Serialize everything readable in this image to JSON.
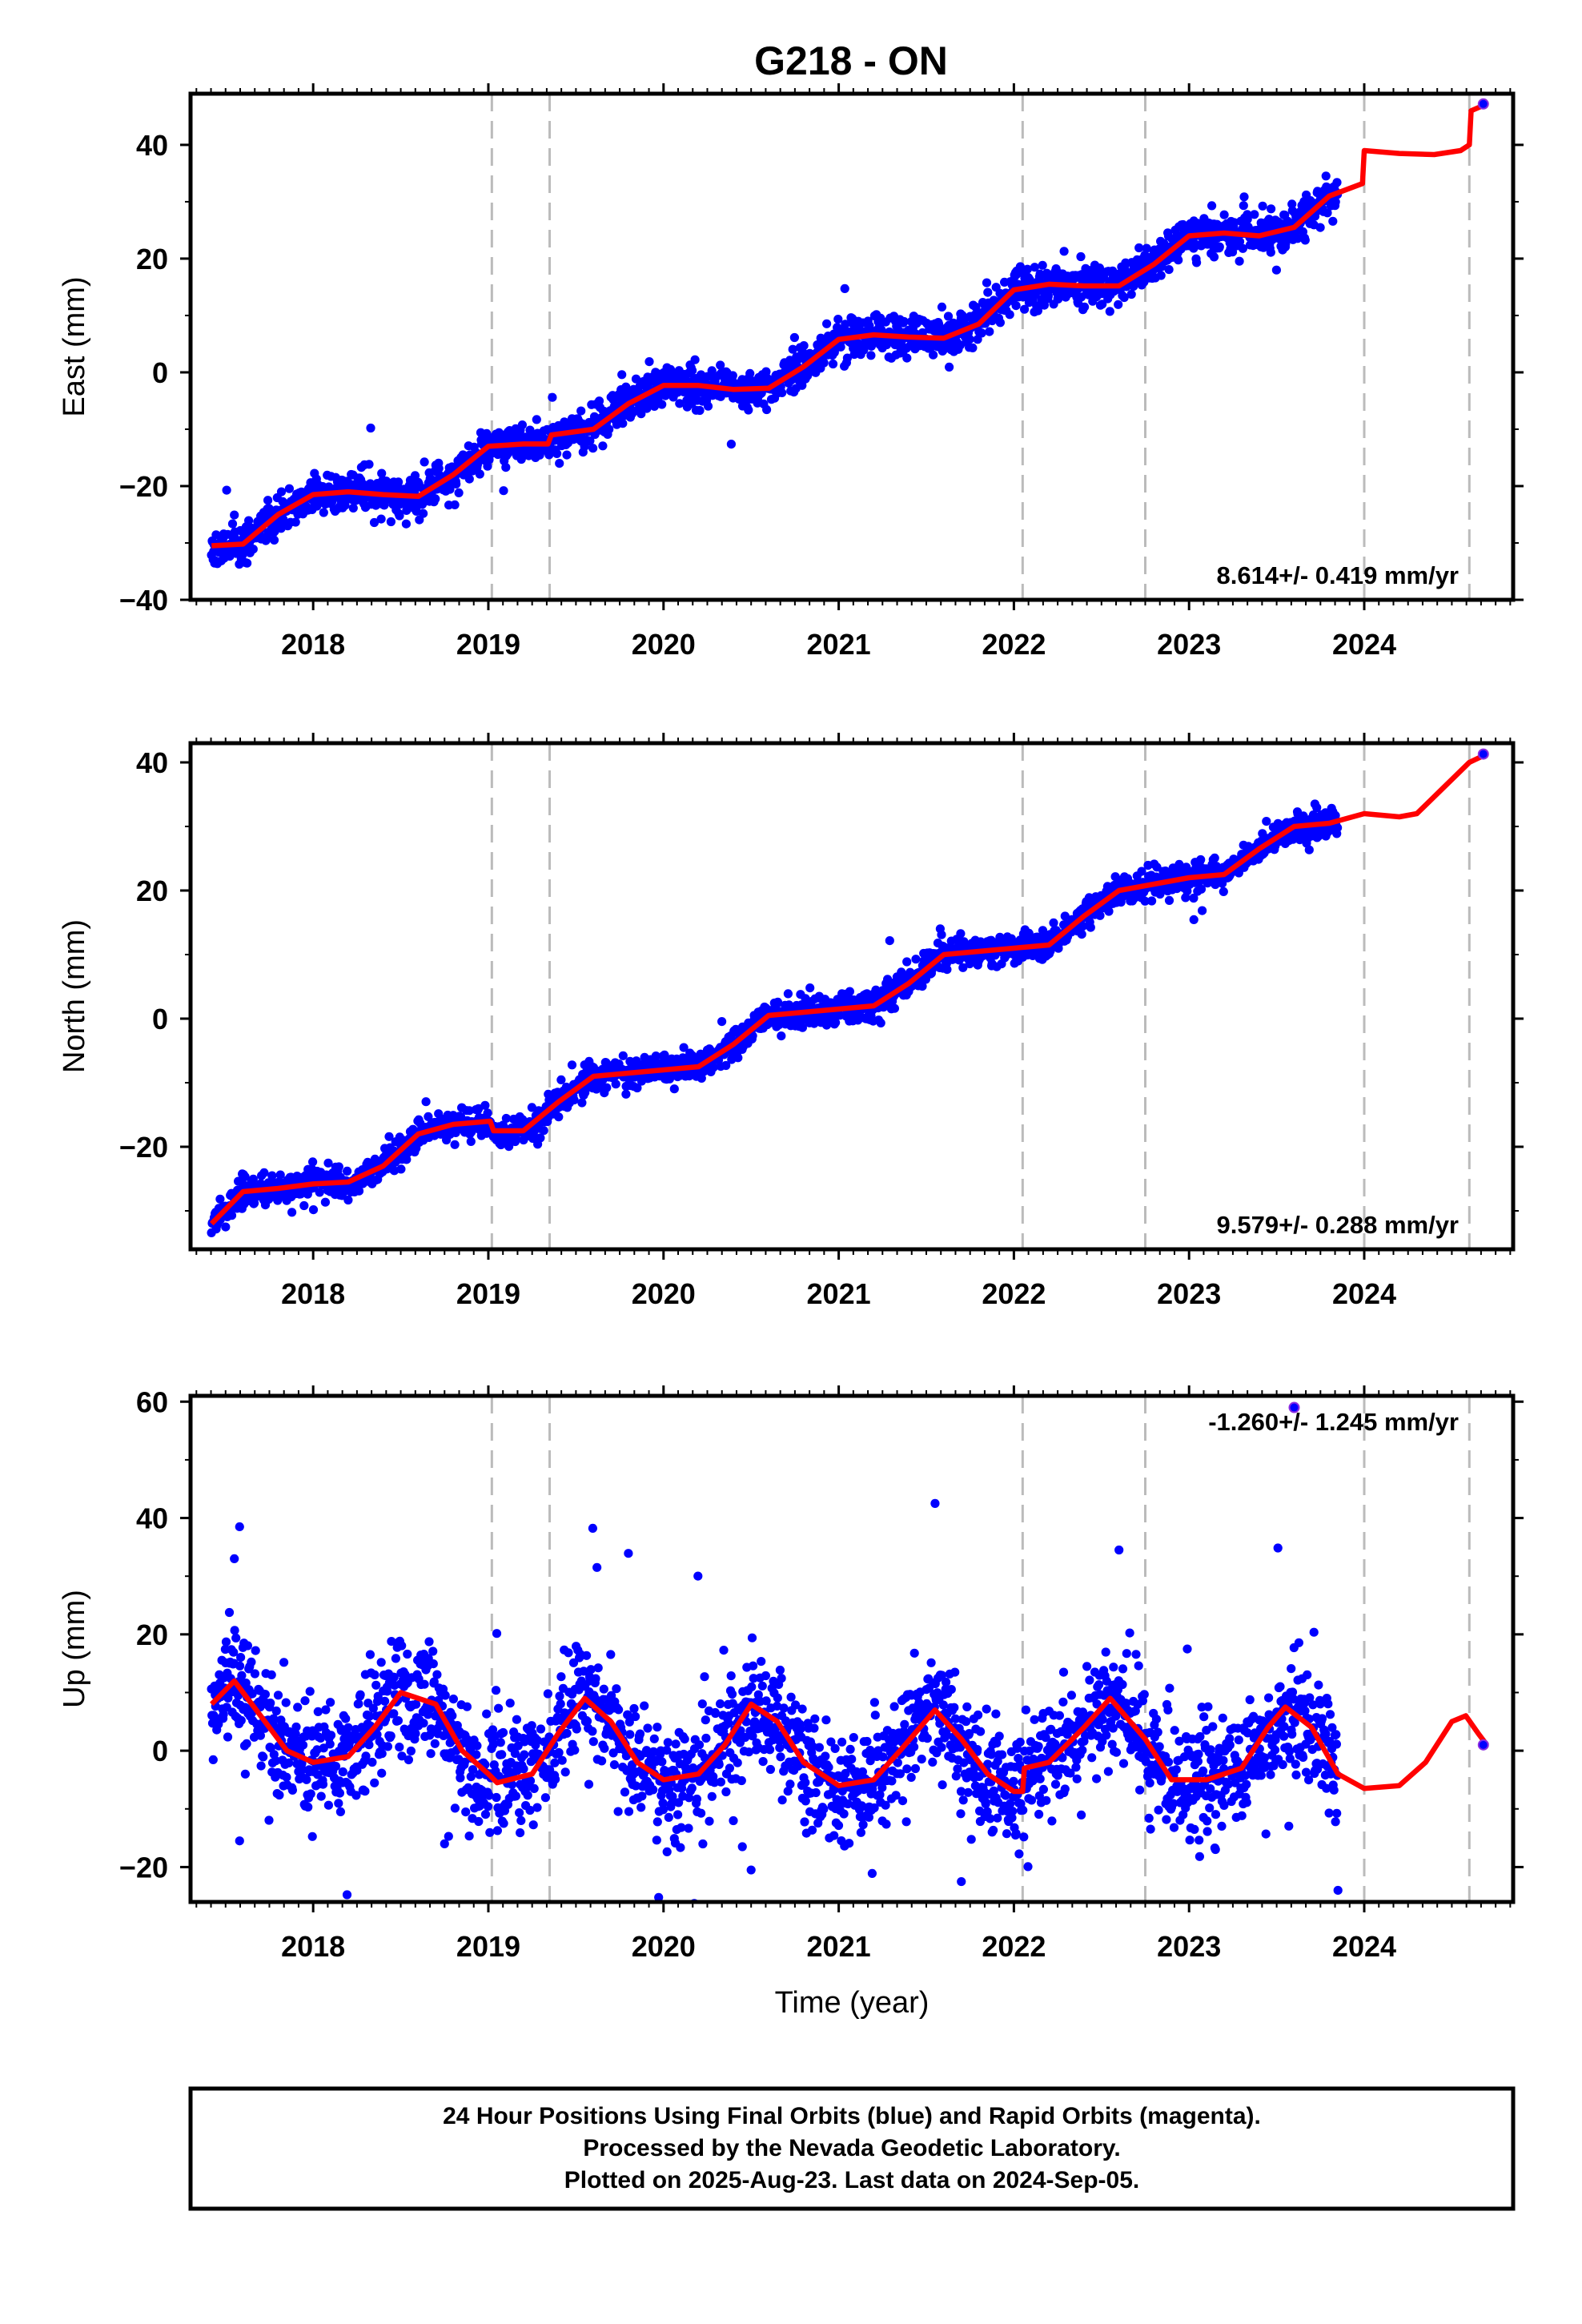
{
  "title": "G218 - ON",
  "colors": {
    "final_points": "#0000ff",
    "rapid_points": "#8a2be2",
    "model": "#ff0000",
    "events": "#bbbbbb",
    "frame": "#000000"
  },
  "chart_data": [
    {
      "type": "scatter",
      "title": "G218 - ON",
      "xlabel": "",
      "ylabel": "East (mm)",
      "xlim": [
        2017.3,
        2024.85
      ],
      "ylim": [
        -40,
        49
      ],
      "xticks": [
        2018,
        2019,
        2020,
        2021,
        2022,
        2023,
        2024
      ],
      "xtick_labels": [
        "2018",
        "2019",
        "2020",
        "2021",
        "2022",
        "2023",
        "2024"
      ],
      "yticks": [
        -40,
        -20,
        0,
        20,
        40
      ],
      "ytick_labels": [
        "−40",
        "−20",
        "0",
        "20",
        "40"
      ],
      "rate_text": "8.614+/- 0.419 mm/yr",
      "rate_position": "bottom-right",
      "event_lines": [
        2019.02,
        2019.35,
        2022.05,
        2022.75,
        2024.0,
        2024.6
      ],
      "trend": {
        "rate": 8.614,
        "offset": -20,
        "ref_year": 2018.5,
        "annual_amp": 3.2,
        "annual_phase": 0.95,
        "noise_sd": 1.7,
        "start": 2017.42,
        "end": 2023.85
      },
      "steps": [
        [
          2019.35,
          1.5
        ],
        [
          2024.0,
          6.0
        ]
      ],
      "model_points": [
        [
          2017.42,
          -30.5
        ],
        [
          2017.6,
          -30.2
        ],
        [
          2017.8,
          -25.0
        ],
        [
          2018.0,
          -21.5
        ],
        [
          2018.2,
          -21.0
        ],
        [
          2018.4,
          -21.5
        ],
        [
          2018.6,
          -21.8
        ],
        [
          2018.8,
          -18.0
        ],
        [
          2019.0,
          -13.0
        ],
        [
          2019.2,
          -12.6
        ],
        [
          2019.34,
          -12.6
        ],
        [
          2019.36,
          -11.0
        ],
        [
          2019.6,
          -10.0
        ],
        [
          2019.8,
          -5.5
        ],
        [
          2020.0,
          -2.3
        ],
        [
          2020.2,
          -2.3
        ],
        [
          2020.4,
          -3.0
        ],
        [
          2020.6,
          -2.8
        ],
        [
          2020.8,
          1.0
        ],
        [
          2021.0,
          5.8
        ],
        [
          2021.2,
          6.6
        ],
        [
          2021.4,
          6.2
        ],
        [
          2021.6,
          6.0
        ],
        [
          2021.8,
          8.5
        ],
        [
          2022.0,
          14.5
        ],
        [
          2022.2,
          15.5
        ],
        [
          2022.4,
          15.2
        ],
        [
          2022.6,
          15.2
        ],
        [
          2022.8,
          19.0
        ],
        [
          2023.0,
          24.0
        ],
        [
          2023.2,
          24.5
        ],
        [
          2023.4,
          24.0
        ],
        [
          2023.6,
          25.5
        ],
        [
          2023.8,
          31.0
        ],
        [
          2023.99,
          33.2
        ],
        [
          2024.0,
          39.0
        ],
        [
          2024.2,
          38.5
        ],
        [
          2024.4,
          38.3
        ],
        [
          2024.55,
          39.0
        ],
        [
          2024.6,
          40.0
        ],
        [
          2024.61,
          46.0
        ],
        [
          2024.7,
          47.2
        ]
      ],
      "rapid_points": [
        [
          2024.68,
          47.2
        ]
      ],
      "seed": 11
    },
    {
      "type": "scatter",
      "xlabel": "",
      "ylabel": "North (mm)",
      "xlim": [
        2017.3,
        2024.85
      ],
      "ylim": [
        -36,
        43
      ],
      "xticks": [
        2018,
        2019,
        2020,
        2021,
        2022,
        2023,
        2024
      ],
      "xtick_labels": [
        "2018",
        "2019",
        "2020",
        "2021",
        "2022",
        "2023",
        "2024"
      ],
      "yticks": [
        -20,
        0,
        20,
        40
      ],
      "ytick_labels": [
        "−20",
        "0",
        "20",
        "40"
      ],
      "rate_text": "9.579+/- 0.288 mm/yr",
      "rate_position": "bottom-right",
      "event_lines": [
        2019.02,
        2019.35,
        2022.05,
        2022.75,
        2024.0,
        2024.6
      ],
      "trend": {
        "rate": 9.579,
        "offset": -17,
        "ref_year": 2018.6,
        "annual_amp": 2.8,
        "annual_phase": 0.3,
        "noise_sd": 1.1,
        "start": 2017.42,
        "end": 2023.85
      },
      "steps": [
        [
          2019.02,
          -1.5
        ]
      ],
      "model_points": [
        [
          2017.42,
          -32.0
        ],
        [
          2017.6,
          -27.0
        ],
        [
          2017.8,
          -26.5
        ],
        [
          2018.0,
          -25.8
        ],
        [
          2018.2,
          -25.5
        ],
        [
          2018.4,
          -23.0
        ],
        [
          2018.6,
          -18.0
        ],
        [
          2018.8,
          -16.5
        ],
        [
          2019.01,
          -16.0
        ],
        [
          2019.03,
          -17.5
        ],
        [
          2019.2,
          -17.5
        ],
        [
          2019.4,
          -13.0
        ],
        [
          2019.6,
          -9.0
        ],
        [
          2019.8,
          -8.5
        ],
        [
          2020.0,
          -8.0
        ],
        [
          2020.2,
          -7.5
        ],
        [
          2020.4,
          -4.0
        ],
        [
          2020.6,
          0.5
        ],
        [
          2020.8,
          1.0
        ],
        [
          2021.0,
          1.5
        ],
        [
          2021.2,
          2.0
        ],
        [
          2021.4,
          5.5
        ],
        [
          2021.6,
          10.0
        ],
        [
          2021.8,
          10.5
        ],
        [
          2022.0,
          11.0
        ],
        [
          2022.2,
          11.5
        ],
        [
          2022.4,
          16.0
        ],
        [
          2022.6,
          20.0
        ],
        [
          2022.8,
          21.0
        ],
        [
          2023.0,
          22.0
        ],
        [
          2023.2,
          22.5
        ],
        [
          2023.4,
          26.5
        ],
        [
          2023.6,
          30.0
        ],
        [
          2023.8,
          30.5
        ],
        [
          2024.0,
          32.0
        ],
        [
          2024.2,
          31.5
        ],
        [
          2024.3,
          32.0
        ],
        [
          2024.45,
          36.0
        ],
        [
          2024.6,
          40.0
        ],
        [
          2024.7,
          41.3
        ]
      ],
      "rapid_points": [
        [
          2024.68,
          41.3
        ]
      ],
      "seed": 23
    },
    {
      "type": "scatter",
      "xlabel": "Time (year)",
      "ylabel": "Up (mm)",
      "xlim": [
        2017.3,
        2024.85
      ],
      "ylim": [
        -26,
        61
      ],
      "xticks": [
        2018,
        2019,
        2020,
        2021,
        2022,
        2023,
        2024
      ],
      "xtick_labels": [
        "2018",
        "2019",
        "2020",
        "2021",
        "2022",
        "2023",
        "2024"
      ],
      "yticks": [
        -20,
        0,
        20,
        40,
        60
      ],
      "ytick_labels": [
        "−20",
        "0",
        "20",
        "40",
        "60"
      ],
      "rate_text": "-1.260+/- 1.245 mm/yr",
      "rate_position": "top-right",
      "event_lines": [
        2019.02,
        2019.35,
        2022.05,
        2022.75,
        2024.0,
        2024.6
      ],
      "trend": {
        "rate": -1.26,
        "offset": 2.0,
        "ref_year": 2018.5,
        "annual_amp": 7.0,
        "annual_phase": 0.57,
        "noise_sd": 4.8,
        "start": 2017.42,
        "end": 2023.85
      },
      "steps": [],
      "outliers": [
        [
          2017.58,
          38.5
        ],
        [
          2017.55,
          33.0
        ],
        [
          2019.62,
          31.5
        ],
        [
          2021.55,
          42.5
        ],
        [
          2022.6,
          34.5
        ],
        [
          2021.7,
          -22.5
        ],
        [
          2023.85,
          -24.0
        ],
        [
          2020.5,
          -20.5
        ],
        [
          2017.58,
          -15.5
        ],
        [
          2018.75,
          -16.0
        ],
        [
          2020.45,
          -16.5
        ]
      ],
      "model_points": [
        [
          2017.42,
          8.0
        ],
        [
          2017.55,
          12.0
        ],
        [
          2017.7,
          6.0
        ],
        [
          2017.85,
          0.0
        ],
        [
          2018.0,
          -2.0
        ],
        [
          2018.2,
          -1.0
        ],
        [
          2018.35,
          4.0
        ],
        [
          2018.5,
          10.0
        ],
        [
          2018.7,
          8.0
        ],
        [
          2018.85,
          0.0
        ],
        [
          2019.0,
          -4.0
        ],
        [
          2019.05,
          -5.5
        ],
        [
          2019.25,
          -4.0
        ],
        [
          2019.4,
          3.0
        ],
        [
          2019.55,
          9.0
        ],
        [
          2019.7,
          5.0
        ],
        [
          2019.85,
          -2.0
        ],
        [
          2020.0,
          -5.0
        ],
        [
          2020.2,
          -4.0
        ],
        [
          2020.35,
          1.0
        ],
        [
          2020.5,
          8.0
        ],
        [
          2020.65,
          5.0
        ],
        [
          2020.8,
          -2.0
        ],
        [
          2021.0,
          -6.0
        ],
        [
          2021.2,
          -5.0
        ],
        [
          2021.35,
          0.0
        ],
        [
          2021.55,
          7.0
        ],
        [
          2021.7,
          2.0
        ],
        [
          2021.85,
          -4.0
        ],
        [
          2022.0,
          -7.0
        ],
        [
          2022.05,
          -7.0
        ],
        [
          2022.06,
          -3.0
        ],
        [
          2022.2,
          -2.0
        ],
        [
          2022.4,
          4.0
        ],
        [
          2022.55,
          9.0
        ],
        [
          2022.75,
          2.0
        ],
        [
          2022.9,
          -5.0
        ],
        [
          2023.1,
          -5.0
        ],
        [
          2023.3,
          -3.0
        ],
        [
          2023.45,
          4.0
        ],
        [
          2023.55,
          7.5
        ],
        [
          2023.7,
          4.0
        ],
        [
          2023.85,
          -4.0
        ],
        [
          2024.0,
          -6.5
        ],
        [
          2024.2,
          -6.0
        ],
        [
          2024.35,
          -2.0
        ],
        [
          2024.5,
          5.0
        ],
        [
          2024.58,
          6.0
        ],
        [
          2024.65,
          3.0
        ],
        [
          2024.7,
          1.0
        ]
      ],
      "rapid_points": [
        [
          2024.68,
          1.0
        ],
        [
          2023.6,
          59.0
        ]
      ],
      "seed": 37
    }
  ],
  "footer": {
    "line1": "24 Hour Positions Using Final Orbits (blue) and Rapid Orbits (magenta).",
    "line2": "Processed by the Nevada Geodetic Laboratory.",
    "line3": "Plotted on 2025-Aug-23. Last data on 2024-Sep-05."
  }
}
